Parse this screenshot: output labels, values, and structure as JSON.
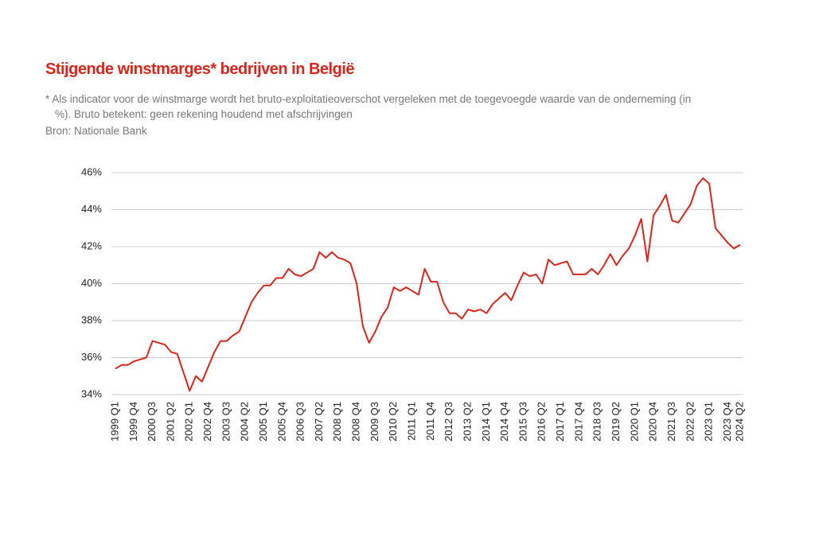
{
  "chart_data": {
    "type": "line",
    "title": "Stijgende winstmarges* bedrijven in België",
    "subtitle": "* Als indicator voor de winstmarge wordt het bruto-exploitatieoverschot vergeleken met de toegevoegde waarde van de onderneming (in %). Bruto betekent: geen rekening houdend met afschrijvingen",
    "source": "Bron: Nationale Bank",
    "categories": [
      "1999 Q1",
      null,
      null,
      "1999 Q4",
      null,
      null,
      "2000 Q3",
      null,
      null,
      "2001 Q2",
      null,
      null,
      "2002 Q1",
      null,
      null,
      "2002 Q4",
      null,
      null,
      "2003 Q3",
      null,
      null,
      "2004 Q2",
      null,
      null,
      "2005 Q1",
      null,
      null,
      "2005 Q4",
      null,
      null,
      "2006 Q3",
      null,
      null,
      "2007 Q2",
      null,
      null,
      "2008 Q1",
      null,
      null,
      "2008 Q4",
      null,
      null,
      "2009 Q3",
      null,
      null,
      "2010 Q2",
      null,
      null,
      "2011 Q1",
      null,
      null,
      "2011 Q4",
      null,
      null,
      "2012 Q3",
      null,
      null,
      "2013 Q2",
      null,
      null,
      "2014 Q1",
      null,
      null,
      "2014 Q4",
      null,
      null,
      "2015 Q3",
      null,
      null,
      "2016 Q2",
      null,
      null,
      "2017 Q1",
      null,
      null,
      "2017 Q4",
      null,
      null,
      "2018 Q3",
      null,
      null,
      "2019 Q2",
      null,
      null,
      "2020 Q1",
      null,
      null,
      "2020 Q4",
      null,
      null,
      "2021 Q3",
      null,
      null,
      "2022 Q2",
      null,
      null,
      "2023 Q1",
      null,
      null,
      "2023 Q4",
      null,
      "2024 Q2"
    ],
    "values": [
      35.4,
      35.6,
      35.6,
      35.8,
      35.9,
      36.0,
      36.9,
      36.8,
      36.7,
      36.3,
      36.2,
      35.2,
      34.2,
      35.0,
      34.7,
      35.5,
      36.3,
      36.9,
      36.9,
      37.2,
      37.4,
      38.2,
      39.0,
      39.5,
      39.9,
      39.9,
      40.3,
      40.3,
      40.8,
      40.5,
      40.4,
      40.6,
      40.8,
      41.7,
      41.4,
      41.7,
      41.4,
      41.3,
      41.1,
      40.0,
      37.7,
      36.8,
      37.4,
      38.2,
      38.7,
      39.8,
      39.6,
      39.8,
      39.6,
      39.4,
      40.8,
      40.1,
      40.1,
      39.0,
      38.4,
      38.4,
      38.1,
      38.6,
      38.5,
      38.6,
      38.4,
      38.9,
      39.2,
      39.5,
      39.1,
      39.9,
      40.6,
      40.4,
      40.5,
      40.0,
      41.3,
      41.0,
      41.1,
      41.2,
      40.5,
      40.5,
      40.5,
      40.8,
      40.5,
      41.0,
      41.6,
      41.0,
      41.5,
      41.9,
      42.6,
      43.5,
      41.2,
      43.7,
      44.2,
      44.8,
      43.4,
      43.3,
      43.8,
      44.3,
      45.3,
      45.7,
      45.4,
      43.0,
      42.6,
      42.2,
      41.9,
      42.1
    ],
    "color": "#d9261c",
    "ylim": [
      34,
      46
    ],
    "yticks": [
      {
        "value": 34,
        "label": "34%"
      },
      {
        "value": 36,
        "label": "36%"
      },
      {
        "value": 38,
        "label": "38%"
      },
      {
        "value": 40,
        "label": "40%"
      },
      {
        "value": 42,
        "label": "42%"
      },
      {
        "value": 44,
        "label": "44%"
      },
      {
        "value": 46,
        "label": "46%"
      }
    ],
    "grid": true
  }
}
